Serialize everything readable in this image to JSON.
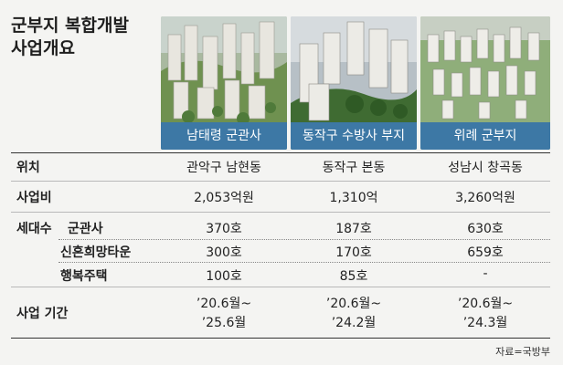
{
  "title": {
    "line1": "군부지 복합개발",
    "line2": "사업개요"
  },
  "sites": [
    {
      "name": "남태령 군관사"
    },
    {
      "name": "동작구 수방사 부지"
    },
    {
      "name": "위례 군부지"
    }
  ],
  "rows": {
    "location": {
      "label": "위치",
      "values": [
        "관악구 남현동",
        "동작구 본동",
        "성남시 창곡동"
      ]
    },
    "budget": {
      "label": "사업비",
      "values": [
        "2,053억원",
        "1,310억",
        "3,260억원"
      ]
    },
    "households": {
      "label": "세대수",
      "sub": [
        {
          "label": "군관사",
          "values": [
            "370호",
            "187호",
            "630호"
          ]
        },
        {
          "label": "신혼희망타운",
          "values": [
            "300호",
            "170호",
            "659호"
          ]
        },
        {
          "label": "행복주택",
          "values": [
            "100호",
            "85호",
            "-"
          ]
        }
      ]
    },
    "period": {
      "label": "사업 기간",
      "values": [
        {
          "start": "’20.6월~",
          "end": "’25.6월"
        },
        {
          "start": "’20.6월~",
          "end": "’24.2월"
        },
        {
          "start": "’20.6월~",
          "end": "’24.3월"
        }
      ]
    }
  },
  "source": "자료=국방부",
  "colors": {
    "caption_bg": "#3d78a5",
    "page_bg": "#f4f4f2"
  }
}
